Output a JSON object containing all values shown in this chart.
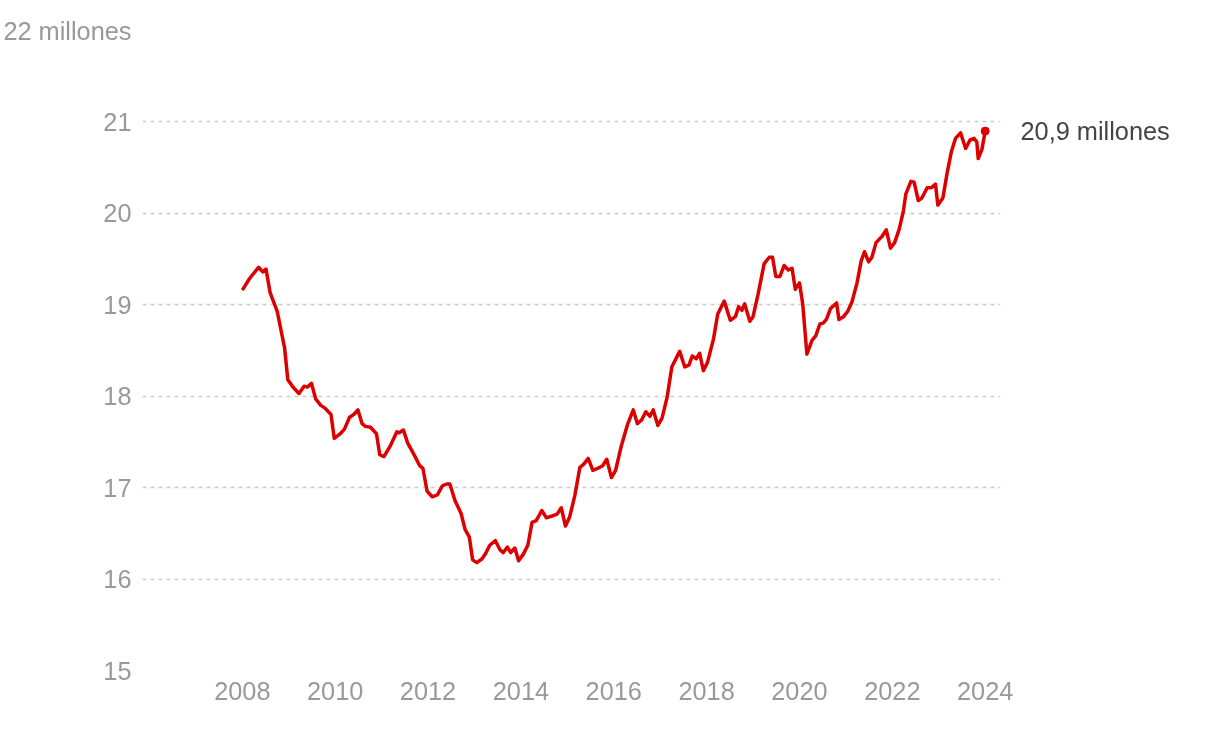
{
  "chart_data": {
    "type": "line",
    "x": [
      2008.0,
      2008.16,
      2008.35,
      2008.44,
      2008.51,
      2008.6,
      2008.75,
      2008.91,
      2008.98,
      2009.09,
      2009.22,
      2009.33,
      2009.4,
      2009.49,
      2009.58,
      2009.69,
      2009.78,
      2009.91,
      2009.98,
      2010.11,
      2010.2,
      2010.31,
      2010.4,
      2010.49,
      2010.58,
      2010.65,
      2010.76,
      2010.89,
      2010.96,
      2011.05,
      2011.18,
      2011.33,
      2011.38,
      2011.47,
      2011.56,
      2011.71,
      2011.82,
      2011.89,
      2011.98,
      2012.09,
      2012.2,
      2012.31,
      2012.4,
      2012.47,
      2012.58,
      2012.71,
      2012.8,
      2012.89,
      2012.96,
      2013.05,
      2013.16,
      2013.24,
      2013.33,
      2013.45,
      2013.55,
      2013.62,
      2013.71,
      2013.78,
      2013.87,
      2013.95,
      2014.05,
      2014.15,
      2014.24,
      2014.33,
      2014.45,
      2014.55,
      2014.67,
      2014.78,
      2014.87,
      2014.96,
      2015.05,
      2015.16,
      2015.27,
      2015.36,
      2015.45,
      2015.55,
      2015.65,
      2015.76,
      2015.85,
      2015.95,
      2016.04,
      2016.16,
      2016.29,
      2016.42,
      2016.51,
      2016.6,
      2016.69,
      2016.78,
      2016.85,
      2016.95,
      2017.04,
      2017.15,
      2017.25,
      2017.42,
      2017.53,
      2017.62,
      2017.69,
      2017.78,
      2017.85,
      2017.93,
      2018.02,
      2018.15,
      2018.24,
      2018.38,
      2018.51,
      2018.62,
      2018.69,
      2018.76,
      2018.82,
      2018.93,
      2019.0,
      2019.11,
      2019.24,
      2019.35,
      2019.42,
      2019.49,
      2019.58,
      2019.67,
      2019.76,
      2019.84,
      2019.91,
      2020.0,
      2020.07,
      2020.16,
      2020.27,
      2020.35,
      2020.44,
      2020.51,
      2020.58,
      2020.67,
      2020.8,
      2020.85,
      2020.95,
      2021.04,
      2021.13,
      2021.24,
      2021.33,
      2021.4,
      2021.49,
      2021.56,
      2021.65,
      2021.78,
      2021.87,
      2021.96,
      2022.05,
      2022.15,
      2022.24,
      2022.29,
      2022.4,
      2022.47,
      2022.56,
      2022.64,
      2022.75,
      2022.84,
      2022.93,
      2022.98,
      2023.09,
      2023.18,
      2023.27,
      2023.36,
      2023.47,
      2023.58,
      2023.67,
      2023.76,
      2023.82,
      2023.85,
      2023.93,
      2024.0
    ],
    "series": [
      {
        "color": "#dd0000",
        "values": [
          19.16,
          19.29,
          19.41,
          19.36,
          19.39,
          19.13,
          18.93,
          18.53,
          18.18,
          18.1,
          18.03,
          18.11,
          18.1,
          18.14,
          17.97,
          17.9,
          17.87,
          17.8,
          17.54,
          17.59,
          17.64,
          17.77,
          17.8,
          17.85,
          17.7,
          17.67,
          17.66,
          17.59,
          17.36,
          17.34,
          17.45,
          17.61,
          17.6,
          17.63,
          17.49,
          17.35,
          17.24,
          17.21,
          16.96,
          16.9,
          16.92,
          17.02,
          17.04,
          17.04,
          16.86,
          16.72,
          16.54,
          16.46,
          16.21,
          16.18,
          16.22,
          16.28,
          16.37,
          16.42,
          16.32,
          16.29,
          16.35,
          16.29,
          16.34,
          16.2,
          16.27,
          16.37,
          16.62,
          16.64,
          16.75,
          16.67,
          16.69,
          16.71,
          16.78,
          16.58,
          16.68,
          16.91,
          17.22,
          17.26,
          17.32,
          17.19,
          17.21,
          17.24,
          17.31,
          17.11,
          17.19,
          17.45,
          17.68,
          17.85,
          17.7,
          17.74,
          17.83,
          17.78,
          17.85,
          17.68,
          17.76,
          17.99,
          18.32,
          18.49,
          18.32,
          18.34,
          18.44,
          18.41,
          18.47,
          18.28,
          18.37,
          18.63,
          18.9,
          19.04,
          18.83,
          18.87,
          18.98,
          18.94,
          19.01,
          18.82,
          18.87,
          19.12,
          19.45,
          19.52,
          19.52,
          19.31,
          19.31,
          19.43,
          19.38,
          19.4,
          19.17,
          19.24,
          19.01,
          18.46,
          18.61,
          18.66,
          18.79,
          18.8,
          18.84,
          18.96,
          19.02,
          18.84,
          18.87,
          18.93,
          19.03,
          19.24,
          19.48,
          19.58,
          19.47,
          19.52,
          19.68,
          19.75,
          19.82,
          19.62,
          19.68,
          19.83,
          20.03,
          20.21,
          20.35,
          20.34,
          20.14,
          20.17,
          20.28,
          20.28,
          20.32,
          20.09,
          20.17,
          20.44,
          20.67,
          20.82,
          20.88,
          20.71,
          20.8,
          20.82,
          20.78,
          20.6,
          20.7,
          20.9
        ]
      }
    ],
    "xlim": [
      2005.85,
      2024.33
    ],
    "ylim": [
      15,
      22
    ],
    "xticks": [
      2008,
      2010,
      2012,
      2014,
      2016,
      2018,
      2020,
      2022,
      2024
    ],
    "yticks": [
      15,
      16,
      17,
      18,
      19,
      20,
      21,
      {
        "value": 22,
        "label": "22 millones"
      }
    ],
    "grid": "y",
    "line_style": "solid",
    "annotations": [
      {
        "text": "20,9 millones",
        "x": 2024.0,
        "y": 20.9
      }
    ]
  }
}
